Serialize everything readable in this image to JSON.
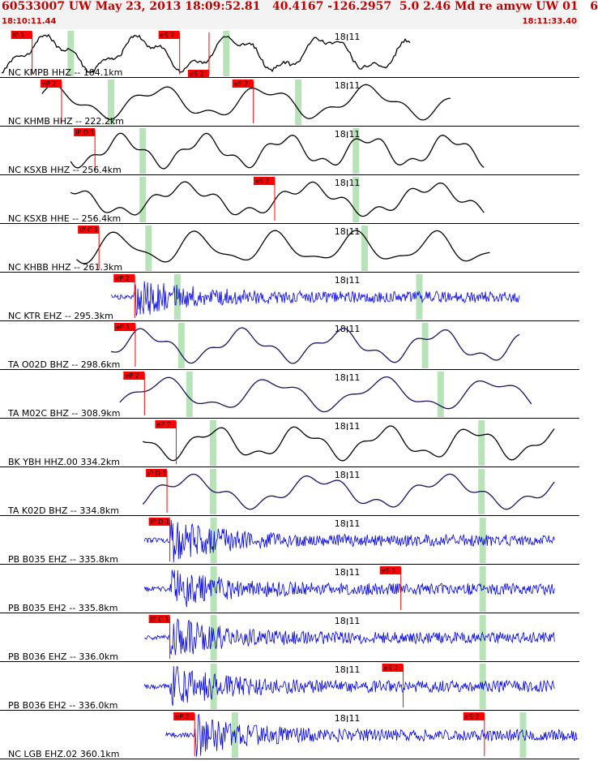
{
  "header": {
    "title": "60533007 UW May 23, 2013 18:09:52.81   40.4167 -126.2957  5.0 2.46 Md re amyw UW 01   6",
    "time_start": "18:10:11.44",
    "time_end": "18:11:33.40"
  },
  "chart_data": {
    "type": "line",
    "title": "60533007 UW May 23, 2013 18:09:52.81   40.4167 -126.2957  5.0 2.46 Md re amyw UW 01   6",
    "x_range": [
      "18:10:11.44",
      "18:11:33.40"
    ],
    "minute_marker": "18:11",
    "colors": {
      "header": "#c00000",
      "pick": "#ff0000",
      "green_bar": "#b8e2b8",
      "trace_blue": "#0000ee",
      "trace_navy": "#1c1060",
      "trace_black": "#000000"
    },
    "traces": [
      {
        "label": "NC KMPB HHZ -- 184.1km",
        "kind": "wave_noisy",
        "color": "#000000",
        "seed": 11,
        "start_frac": 0.0,
        "end_frac": 0.71,
        "onset_frac": 0.0,
        "picks": [
          {
            "text": "IP 1",
            "frac": 0.053
          },
          {
            "text": "eS 2",
            "frac": 0.309,
            "above": true
          },
          {
            "text": "eS 2",
            "frac": 0.36,
            "below": true
          }
        ],
        "green_fracs": [
          0.12,
          0.39
        ]
      },
      {
        "label": "NC KHMB HHZ -- 222.2km",
        "kind": "wave_smooth",
        "color": "#000000",
        "seed": 23,
        "start_frac": 0.07,
        "end_frac": 0.78,
        "onset_frac": 0.07,
        "picks": [
          {
            "text": "eP 2",
            "frac": 0.104
          },
          {
            "text": "eS 2",
            "frac": 0.437
          }
        ],
        "green_fracs": [
          0.19,
          0.515
        ]
      },
      {
        "label": "NC KSXB HHZ -- 256.4km",
        "kind": "wave_smooth",
        "color": "#000000",
        "seed": 37,
        "start_frac": 0.12,
        "end_frac": 0.84,
        "onset_frac": 0.12,
        "picks": [
          {
            "text": "IP D 1",
            "frac": 0.162
          }
        ],
        "green_fracs": [
          0.245,
          0.615
        ]
      },
      {
        "label": "NC KSXB HHE -- 256.4km",
        "kind": "wave_smooth",
        "color": "#000000",
        "seed": 41,
        "start_frac": 0.12,
        "end_frac": 0.84,
        "onset_frac": 0.12,
        "picks": [
          {
            "text": "eS 2",
            "frac": 0.474
          }
        ],
        "green_fracs": [
          0.245,
          0.615
        ]
      },
      {
        "label": "NC KHBB HHZ -- 261.3km",
        "kind": "wave_smooth",
        "color": "#000000",
        "seed": 53,
        "start_frac": 0.13,
        "end_frac": 0.85,
        "onset_frac": 0.13,
        "picks": [
          {
            "text": "IP C 1",
            "frac": 0.169
          }
        ],
        "green_fracs": [
          0.255,
          0.63
        ]
      },
      {
        "label": "NC KTR EHZ -- 295.3km",
        "kind": "noise",
        "color": "#0000ee",
        "seed": 61,
        "start_frac": 0.19,
        "end_frac": 0.9,
        "onset_frac": 0.23,
        "picks": [
          {
            "text": "eP 2",
            "frac": 0.231
          }
        ],
        "green_fracs": [
          0.305,
          0.725
        ]
      },
      {
        "label": "TA O02D BHZ -- 298.6km",
        "kind": "wave_smooth",
        "color": "#1c1060",
        "seed": 71,
        "start_frac": 0.19,
        "end_frac": 0.9,
        "onset_frac": 0.23,
        "picks": [
          {
            "text": "eP 1",
            "frac": 0.232
          }
        ],
        "green_fracs": [
          0.312,
          0.735
        ]
      },
      {
        "label": "TA M02C BHZ -- 308.9km",
        "kind": "wave_smooth",
        "color": "#1c1060",
        "seed": 83,
        "start_frac": 0.205,
        "end_frac": 0.92,
        "onset_frac": 0.245,
        "picks": [
          {
            "text": "eP 2",
            "frac": 0.248
          }
        ],
        "green_fracs": [
          0.326,
          0.762
        ]
      },
      {
        "label": "BK YBH HHZ.00 334.2km",
        "kind": "wave_smooth",
        "color": "#000000",
        "seed": 97,
        "start_frac": 0.245,
        "end_frac": 0.96,
        "onset_frac": 0.29,
        "picks": [
          {
            "text": "eP 2",
            "frac": 0.303
          }
        ],
        "green_fracs": [
          0.367,
          0.833
        ]
      },
      {
        "label": "TA K02D BHZ -- 334.8km",
        "kind": "wave_smooth",
        "color": "#1c1060",
        "seed": 101,
        "start_frac": 0.245,
        "end_frac": 0.96,
        "onset_frac": 0.29,
        "picks": [
          {
            "text": "IP D 1",
            "frac": 0.287
          }
        ],
        "green_fracs": [
          0.367,
          0.833
        ]
      },
      {
        "label": "PB B035 EHZ -- 335.8km",
        "kind": "noise",
        "color": "#0000ee",
        "seed": 113,
        "start_frac": 0.248,
        "end_frac": 0.96,
        "onset_frac": 0.292,
        "picks": [
          {
            "text": "IP D 1",
            "frac": 0.292
          }
        ],
        "green_fracs": [
          0.368,
          0.835
        ]
      },
      {
        "label": "PB B035 EH2 -- 335.8km",
        "kind": "noise",
        "color": "#0000ee",
        "seed": 127,
        "start_frac": 0.248,
        "end_frac": 0.96,
        "onset_frac": 0.292,
        "picks": [
          {
            "text": "eS 1",
            "frac": 0.693
          }
        ],
        "green_fracs": [
          0.368,
          0.835
        ]
      },
      {
        "label": "PB B036 EHZ -- 336.0km",
        "kind": "noise",
        "color": "#0000ee",
        "seed": 131,
        "start_frac": 0.248,
        "end_frac": 0.96,
        "onset_frac": 0.292,
        "picks": [
          {
            "text": "IP C 1",
            "frac": 0.292
          }
        ],
        "green_fracs": [
          0.368,
          0.835
        ]
      },
      {
        "label": "PB B036 EH2 -- 336.0km",
        "kind": "noise",
        "color": "#0000ee",
        "seed": 139,
        "start_frac": 0.248,
        "end_frac": 0.96,
        "onset_frac": 0.292,
        "picks": [
          {
            "text": "eS 2",
            "frac": 0.697
          }
        ],
        "green_fracs": [
          0.368,
          0.835
        ]
      },
      {
        "label": "NC LGB EHZ.02 360.1km",
        "kind": "noise",
        "color": "#0000ee",
        "seed": 149,
        "start_frac": 0.285,
        "end_frac": 1.0,
        "onset_frac": 0.335,
        "picks": [
          {
            "text": "eP 2",
            "frac": 0.335
          },
          {
            "text": "eS 2",
            "frac": 0.838
          }
        ],
        "green_fracs": [
          0.405,
          0.905
        ]
      }
    ]
  }
}
